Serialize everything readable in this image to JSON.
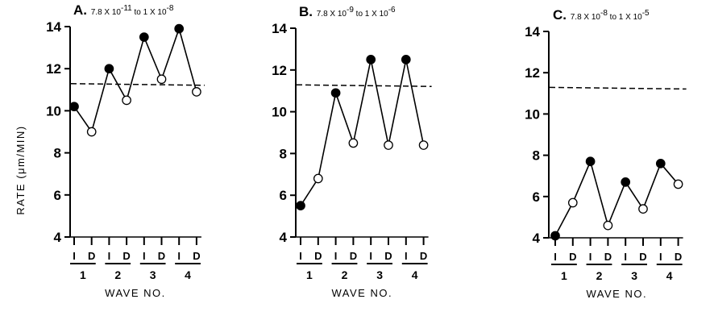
{
  "y_axis_label": "RATE (μm/MIN)",
  "x_axis_label": "WAVE NO.",
  "wave_labels": [
    "1",
    "2",
    "3",
    "4"
  ],
  "phase_labels": [
    "I",
    "D"
  ],
  "marker_legend": {
    "filled": "I",
    "open": "D"
  },
  "chart_data": [
    {
      "type": "line",
      "panel": "A",
      "title_letter": "A.",
      "title_parts": [
        "7.8 X 10",
        "-11",
        " to 1 X 10",
        "-8"
      ],
      "categories": [
        "1-I",
        "1-D",
        "2-I",
        "2-D",
        "3-I",
        "3-D",
        "4-I",
        "4-D"
      ],
      "values": [
        10.2,
        9.0,
        12.0,
        10.5,
        13.5,
        11.5,
        13.9,
        10.9
      ],
      "reference_line": 11.25,
      "ylim": [
        4,
        14
      ],
      "yticks": [
        4,
        6,
        8,
        10,
        12,
        14
      ],
      "ylabel": "RATE (μm/MIN)",
      "xlabel": "WAVE NO."
    },
    {
      "type": "line",
      "panel": "B",
      "title_letter": "B.",
      "title_parts": [
        "7.8 X 10",
        "-9",
        " to 1 X 10",
        "-6"
      ],
      "categories": [
        "1-I",
        "1-D",
        "2-I",
        "2-D",
        "3-I",
        "3-D",
        "4-I",
        "4-D"
      ],
      "values": [
        5.5,
        6.8,
        10.9,
        8.5,
        12.5,
        8.4,
        12.5,
        8.4
      ],
      "reference_line": 11.25,
      "ylim": [
        4,
        14
      ],
      "yticks": [
        4,
        6,
        8,
        10,
        12,
        14
      ],
      "xlabel": "WAVE NO."
    },
    {
      "type": "line",
      "panel": "C",
      "title_letter": "C.",
      "title_parts": [
        "7.8 X 10",
        "-8",
        " to 1 X 10",
        "-5"
      ],
      "categories": [
        "1-I",
        "1-D",
        "2-I",
        "2-D",
        "3-I",
        "3-D",
        "4-I",
        "4-D"
      ],
      "values": [
        4.1,
        5.7,
        7.7,
        4.6,
        6.7,
        5.4,
        7.6,
        6.6
      ],
      "reference_line": 11.25,
      "ylim": [
        4,
        14
      ],
      "yticks": [
        4,
        6,
        8,
        10,
        12,
        14
      ],
      "xlabel": "WAVE NO."
    }
  ]
}
